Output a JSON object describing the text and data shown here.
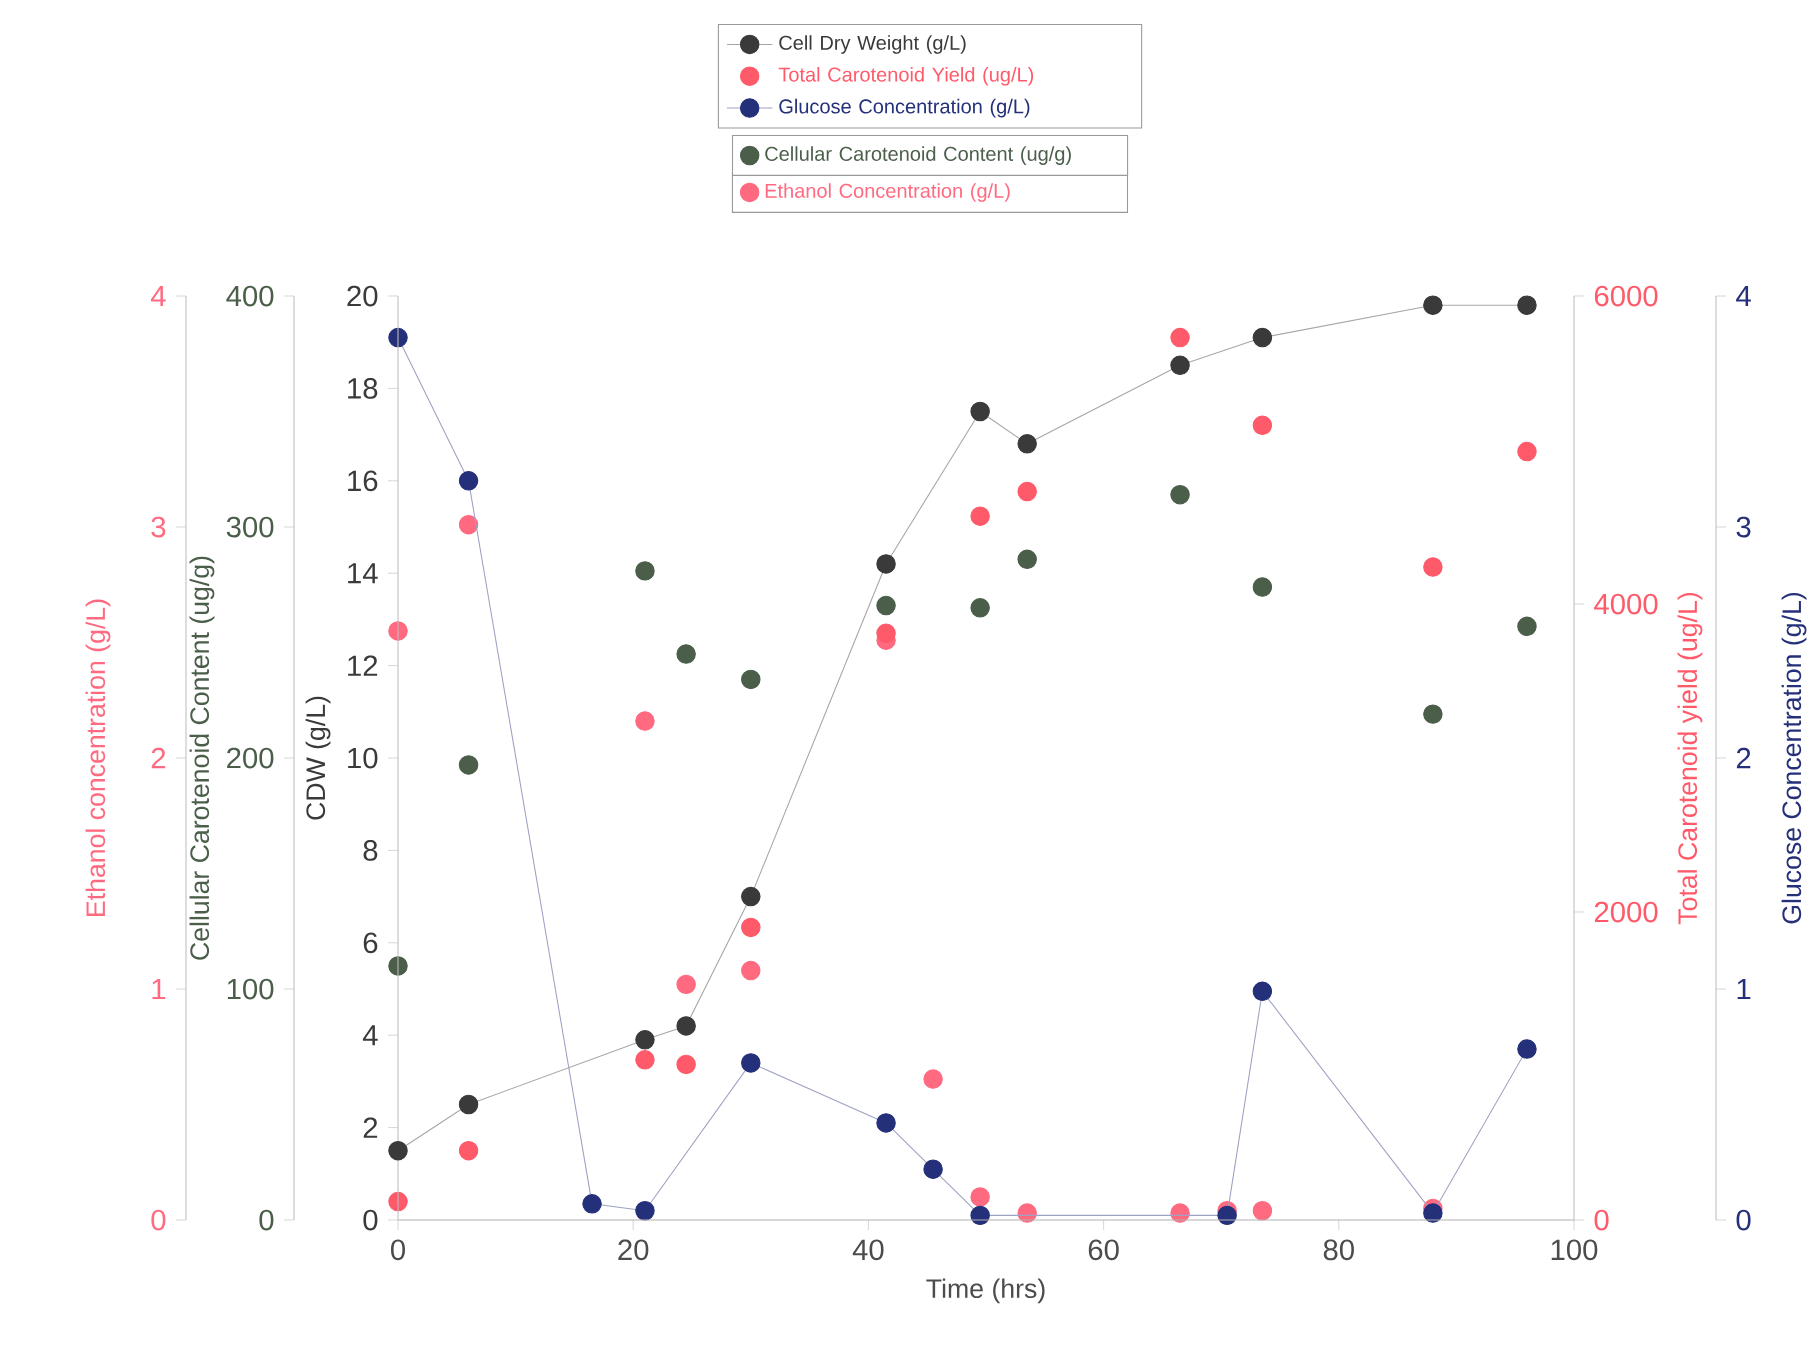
{
  "chart_data": [
    {
      "type": "scatter",
      "marker": "circle",
      "legend": "top",
      "xlabel": "Time (hrs)",
      "ylabel": "CDW (g/L)",
      "y2label": "Total Carotenoid yield (ug/L)",
      "y3label": "Glucose Concentration (g/L)",
      "xlim": [
        0,
        100
      ],
      "xticks": [
        0,
        20,
        40,
        60,
        80,
        100
      ],
      "ylim": [
        0,
        20
      ],
      "yticks": [
        0,
        2,
        4,
        6,
        8,
        10,
        12,
        14,
        16,
        18,
        20
      ],
      "y2lim": [
        0,
        6000
      ],
      "y2ticks": [
        0,
        2000,
        4000,
        6000
      ],
      "y3lim": [
        0,
        4
      ],
      "y3ticks": [
        0,
        1,
        2,
        3,
        4
      ],
      "series": [
        {
          "name": "Cell Dry Weight (g/L)",
          "type": "line",
          "color": "#3a3a3a",
          "x": [
            0,
            6,
            21,
            24.5,
            30,
            41.5,
            49.5,
            53.5,
            66.5,
            73.5,
            88,
            96
          ],
          "values": [
            1.5,
            2.5,
            3.9,
            4.2,
            7.0,
            14.2,
            17.5,
            16.8,
            18.5,
            19.1,
            19.8,
            19.8
          ]
        },
        {
          "name": "Total Carotenoid Yield (ug/L)",
          "type": "scatter",
          "axis": "y2",
          "color": "#ff5a6a",
          "x": [
            0,
            6,
            21,
            24.5,
            30,
            41.5,
            49.5,
            53.5,
            66.5,
            73.5,
            88,
            96
          ],
          "values": [
            120,
            450,
            1040,
            1010,
            1900,
            3810,
            4570,
            4730,
            5730,
            5160,
            4240,
            4990
          ]
        },
        {
          "name": "Glucose Concentration (g/L)",
          "type": "line",
          "axis": "y3",
          "color": "#25307a",
          "x": [
            0,
            6,
            16.5,
            21,
            30,
            41.5,
            45.5,
            49.5,
            70.5,
            73.5,
            88,
            96
          ],
          "values": [
            3.82,
            3.2,
            0.07,
            0.04,
            0.68,
            0.42,
            0.22,
            0.02,
            0.02,
            0.99,
            0.03,
            0.74
          ]
        }
      ]
    },
    {
      "type": "scatter",
      "marker": "circle",
      "legend": "top",
      "tick_labels": "y",
      "ylabel": "Cellular Carotenoid Content (ug/g)",
      "xlim": [
        0,
        100
      ],
      "ylim": [
        0,
        400
      ],
      "yticks": [
        0,
        100,
        200,
        300,
        400
      ],
      "series": [
        {
          "name": "Cellular Carotenoid Content (ug/g)",
          "color": "#4a5e4a",
          "x": [
            0,
            6,
            21,
            24.5,
            30,
            41.5,
            49.5,
            53.5,
            66.5,
            73.5,
            88,
            96
          ],
          "values": [
            110,
            197,
            281,
            245,
            234,
            266,
            265,
            286,
            314,
            274,
            219,
            257
          ]
        }
      ]
    },
    {
      "type": "scatter",
      "marker": "circle",
      "legend": "top",
      "tick_labels": "y",
      "ylabel": "Ethanol concentration (g/L)",
      "xlim": [
        0,
        100
      ],
      "ylim": [
        0,
        4
      ],
      "yticks": [
        0,
        1,
        2,
        3,
        4
      ],
      "series": [
        {
          "name": "Ethanol Concentration (g/L)",
          "color": "#ff6a80",
          "x": [
            0,
            6,
            21,
            24.5,
            30,
            41.5,
            45.5,
            49.5,
            53.5,
            66.5,
            70.5,
            73.5,
            88
          ],
          "values": [
            2.55,
            3.01,
            2.16,
            1.02,
            1.08,
            2.51,
            0.61,
            0.1,
            0.03,
            0.03,
            0.04,
            0.04,
            0.05
          ]
        }
      ]
    }
  ]
}
